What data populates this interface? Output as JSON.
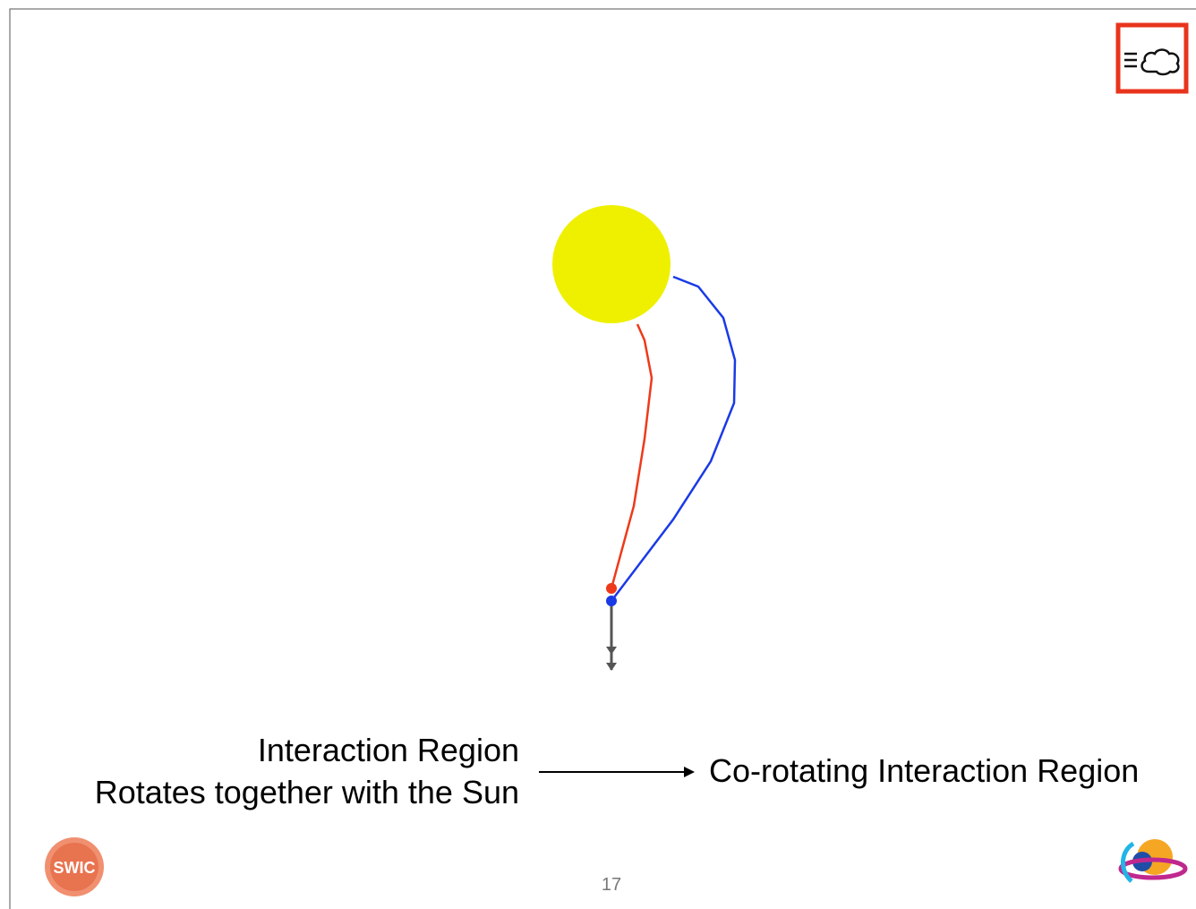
{
  "slide": {
    "left_text": [
      "Interaction Region",
      "Rotates together with the Sun"
    ],
    "right_text": "Co-rotating Interaction Region",
    "page_number": "17",
    "logo_left": "SWIC"
  }
}
